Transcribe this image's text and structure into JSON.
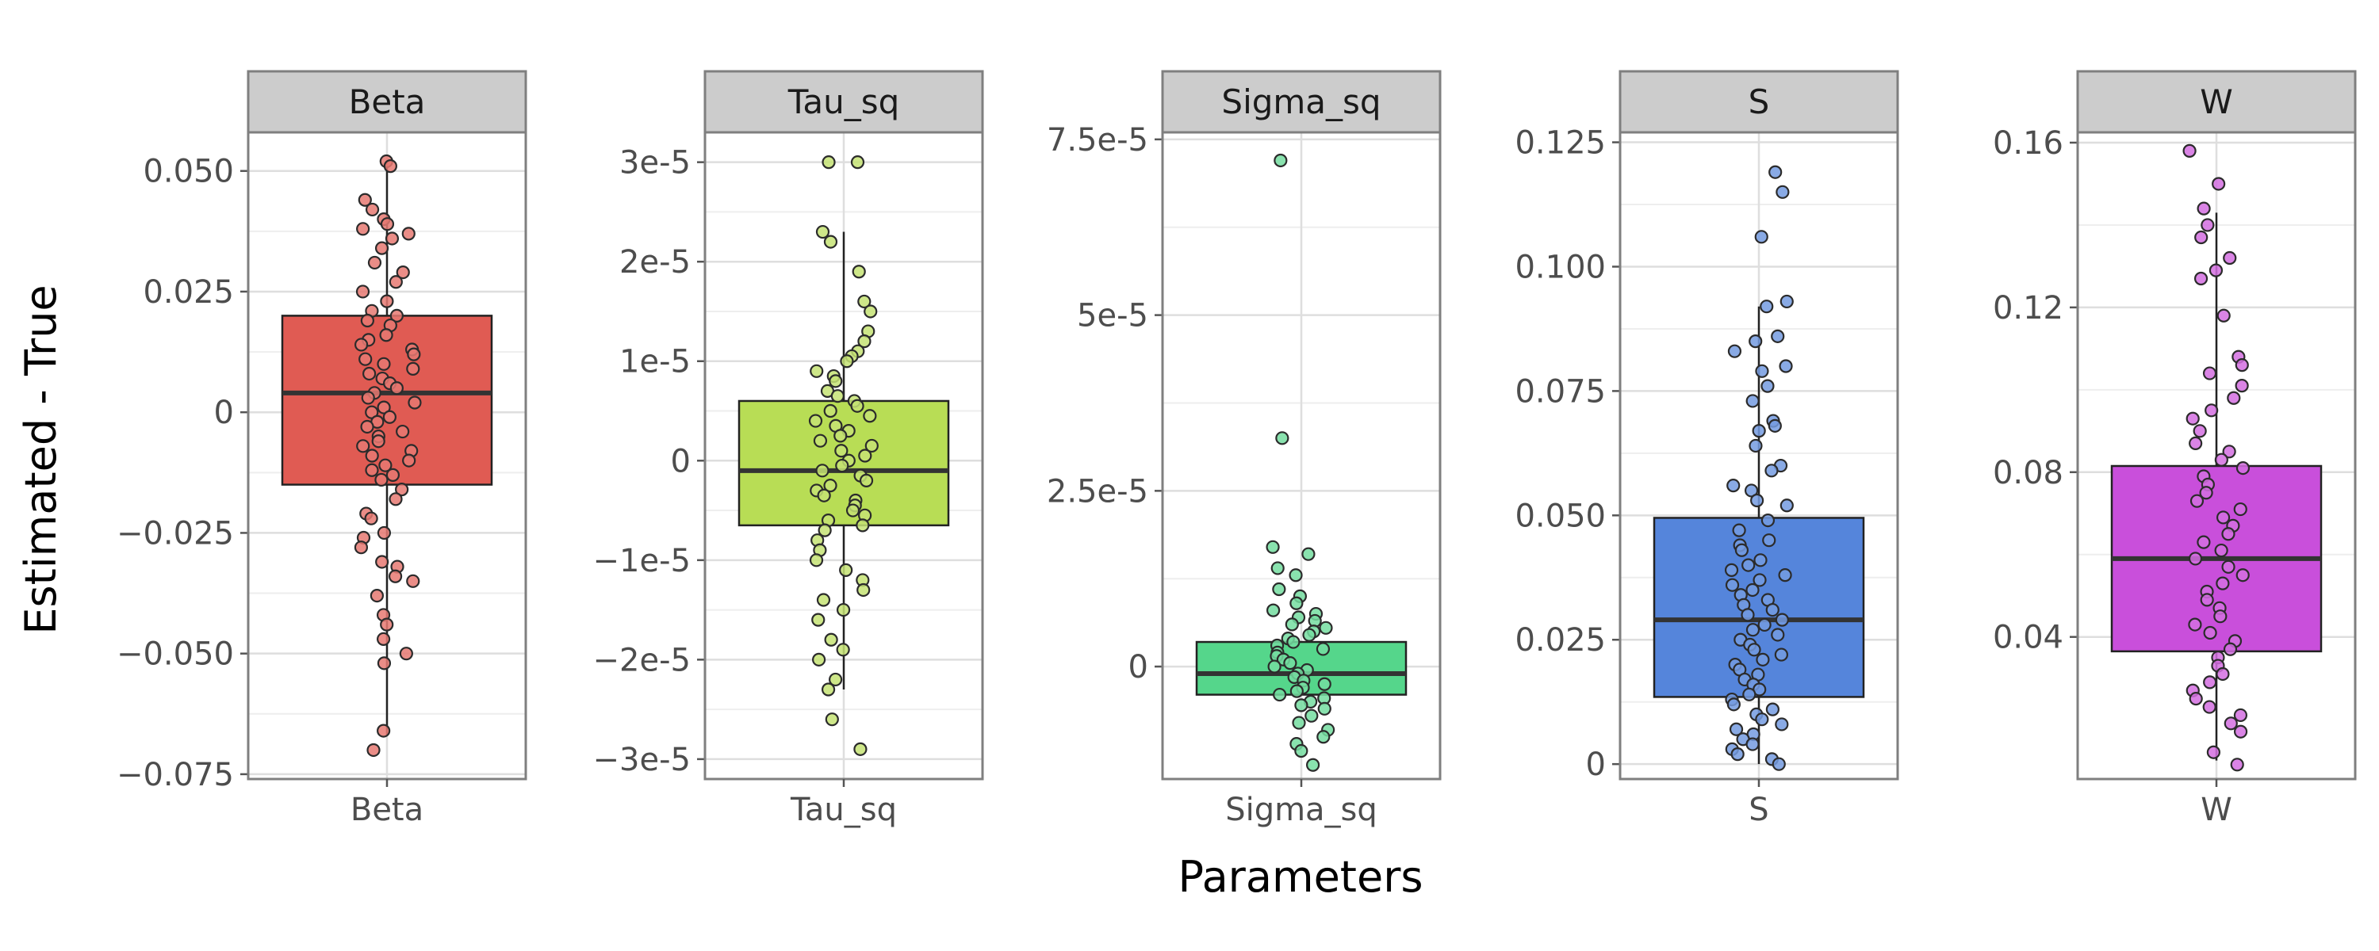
{
  "chart_data": {
    "type": "boxplot",
    "xlabel": "Parameters",
    "ylabel": "Estimated - True",
    "facets": [
      {
        "name": "Beta",
        "x_tick_label": "Beta",
        "color": "#e05b53",
        "ylim": [
          -0.076,
          0.058
        ],
        "y_ticks": [
          -0.075,
          -0.05,
          -0.025,
          0,
          0.025,
          0.05
        ],
        "y_tick_labels": [
          "−0.075",
          "−0.050",
          "−0.025",
          "0",
          "0.025",
          "0.050"
        ],
        "box": {
          "q1": -0.015,
          "median": 0.004,
          "q3": 0.02,
          "whisker_low": -0.067,
          "whisker_high": 0.052
        },
        "points": [
          0.052,
          0.051,
          0.044,
          0.042,
          0.04,
          0.039,
          0.038,
          0.037,
          0.036,
          0.034,
          0.031,
          0.029,
          0.027,
          0.025,
          0.023,
          0.021,
          0.02,
          0.019,
          0.018,
          0.016,
          0.015,
          0.014,
          0.013,
          0.012,
          0.011,
          0.01,
          0.009,
          0.008,
          0.007,
          0.006,
          0.005,
          0.004,
          0.003,
          0.002,
          0.001,
          0.0,
          -0.001,
          -0.002,
          -0.003,
          -0.004,
          -0.005,
          -0.006,
          -0.007,
          -0.008,
          -0.009,
          -0.01,
          -0.011,
          -0.012,
          -0.013,
          -0.014,
          -0.016,
          -0.018,
          -0.021,
          -0.022,
          -0.025,
          -0.026,
          -0.028,
          -0.031,
          -0.032,
          -0.034,
          -0.035,
          -0.038,
          -0.042,
          -0.044,
          -0.047,
          -0.05,
          -0.052,
          -0.066,
          -0.07
        ]
      },
      {
        "name": "Tau_sq",
        "x_tick_label": "Tau_sq",
        "color": "#b8dd55",
        "ylim": [
          -3.2e-05,
          3.3e-05
        ],
        "y_ticks": [
          -3e-05,
          -2e-05,
          -1e-05,
          0,
          1e-05,
          2e-05,
          3e-05
        ],
        "y_tick_labels": [
          "−3e-5",
          "−2e-5",
          "−1e-5",
          "0",
          "1e-5",
          "2e-5",
          "3e-5"
        ],
        "box": {
          "q1": -6.5e-06,
          "median": -1e-06,
          "q3": 6e-06,
          "whisker_low": -2.3e-05,
          "whisker_high": 2.3e-05
        },
        "points": [
          3e-05,
          3e-05,
          2.3e-05,
          2.2e-05,
          1.9e-05,
          1.6e-05,
          1.5e-05,
          1.3e-05,
          1.2e-05,
          1.1e-05,
          1.05e-05,
          1e-05,
          9e-06,
          8.5e-06,
          8e-06,
          7e-06,
          6.5e-06,
          6e-06,
          5.5e-06,
          5e-06,
          4.5e-06,
          4e-06,
          3.5e-06,
          3e-06,
          2.5e-06,
          2e-06,
          1.5e-06,
          1e-06,
          5e-07,
          0,
          -5e-07,
          -1e-06,
          -1.5e-06,
          -2e-06,
          -2.5e-06,
          -3e-06,
          -3.5e-06,
          -4e-06,
          -4.5e-06,
          -5e-06,
          -5.5e-06,
          -6e-06,
          -6.5e-06,
          -7e-06,
          -8e-06,
          -9e-06,
          -1e-05,
          -1.1e-05,
          -1.2e-05,
          -1.3e-05,
          -1.4e-05,
          -1.5e-05,
          -1.6e-05,
          -1.8e-05,
          -1.9e-05,
          -2e-05,
          -2.2e-05,
          -2.3e-05,
          -2.6e-05,
          -2.9e-05
        ]
      },
      {
        "name": "Sigma_sq",
        "x_tick_label": "Sigma_sq",
        "color": "#55d68b",
        "ylim": [
          -1.6e-05,
          7.6e-05
        ],
        "y_ticks": [
          0,
          2.5e-05,
          5e-05,
          7.5e-05
        ],
        "y_tick_labels": [
          "0",
          "2.5e-5",
          "5e-5",
          "7.5e-5"
        ],
        "box": {
          "q1": -4e-06,
          "median": -1e-06,
          "q3": 3.5e-06,
          "whisker_low": -4e-06,
          "whisker_high": 3.5e-06
        },
        "points": [
          7.2e-05,
          3.25e-05,
          1.7e-05,
          1.6e-05,
          1.4e-05,
          1.3e-05,
          1.1e-05,
          1e-05,
          9e-06,
          8e-06,
          7.5e-06,
          7e-06,
          6.5e-06,
          6e-06,
          5.5e-06,
          5e-06,
          4.5e-06,
          4e-06,
          3.5e-06,
          3e-06,
          2.5e-06,
          2e-06,
          1.5e-06,
          1e-06,
          5e-07,
          0,
          -5e-07,
          -1e-06,
          -1.5e-06,
          -2e-06,
          -2.5e-06,
          -3e-06,
          -3.5e-06,
          -4e-06,
          -4.5e-06,
          -5e-06,
          -5.5e-06,
          -6e-06,
          -7e-06,
          -8e-06,
          -9e-06,
          -1e-05,
          -1.1e-05,
          -1.2e-05,
          -1.4e-05
        ]
      },
      {
        "name": "S",
        "x_tick_label": "S",
        "color": "#5585db",
        "ylim": [
          -0.003,
          0.127
        ],
        "y_ticks": [
          0,
          0.025,
          0.05,
          0.075,
          0.1,
          0.125
        ],
        "y_tick_labels": [
          "0",
          "0.025",
          "0.050",
          "0.075",
          "0.100",
          "0.125"
        ],
        "box": {
          "q1": 0.0135,
          "median": 0.029,
          "q3": 0.0495,
          "whisker_low": 0.0,
          "whisker_high": 0.092
        },
        "points": [
          0.119,
          0.115,
          0.106,
          0.093,
          0.092,
          0.086,
          0.085,
          0.083,
          0.08,
          0.079,
          0.076,
          0.073,
          0.069,
          0.068,
          0.067,
          0.064,
          0.06,
          0.059,
          0.056,
          0.055,
          0.053,
          0.052,
          0.049,
          0.047,
          0.045,
          0.044,
          0.043,
          0.041,
          0.04,
          0.039,
          0.038,
          0.037,
          0.036,
          0.035,
          0.034,
          0.033,
          0.032,
          0.031,
          0.03,
          0.029,
          0.028,
          0.027,
          0.026,
          0.025,
          0.024,
          0.023,
          0.022,
          0.021,
          0.02,
          0.019,
          0.018,
          0.017,
          0.016,
          0.015,
          0.014,
          0.013,
          0.012,
          0.011,
          0.01,
          0.009,
          0.008,
          0.007,
          0.006,
          0.005,
          0.004,
          0.003,
          0.002,
          0.001,
          0.0
        ]
      },
      {
        "name": "W",
        "x_tick_label": "W",
        "color": "#c94fdb",
        "ylim": [
          0.0055,
          0.1625
        ],
        "y_ticks": [
          0.04,
          0.08,
          0.12,
          0.16
        ],
        "y_tick_labels": [
          "0.04",
          "0.08",
          "0.12",
          "0.16"
        ],
        "box": {
          "q1": 0.0365,
          "median": 0.059,
          "q3": 0.0815,
          "whisker_low": 0.01,
          "whisker_high": 0.143
        },
        "points": [
          0.158,
          0.15,
          0.144,
          0.14,
          0.137,
          0.132,
          0.129,
          0.127,
          0.118,
          0.108,
          0.106,
          0.104,
          0.101,
          0.098,
          0.095,
          0.093,
          0.09,
          0.087,
          0.085,
          0.083,
          0.081,
          0.079,
          0.077,
          0.075,
          0.073,
          0.071,
          0.069,
          0.067,
          0.065,
          0.063,
          0.061,
          0.059,
          0.057,
          0.055,
          0.053,
          0.051,
          0.049,
          0.047,
          0.045,
          0.043,
          0.041,
          0.039,
          0.037,
          0.035,
          0.033,
          0.031,
          0.029,
          0.027,
          0.025,
          0.023,
          0.021,
          0.019,
          0.017,
          0.012,
          0.009
        ]
      }
    ]
  }
}
